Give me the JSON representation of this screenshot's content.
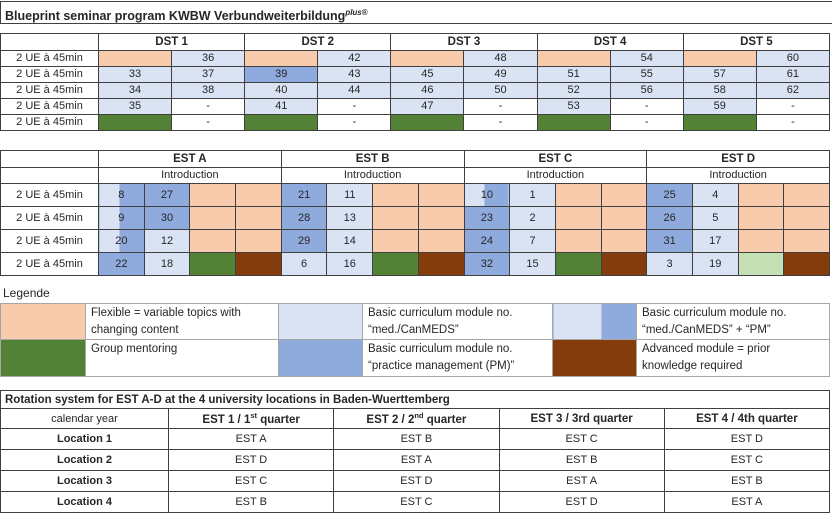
{
  "title": {
    "main": "Blueprint seminar program KWBW Verbundweiterbildung",
    "sup": "plus",
    "reg": "®"
  },
  "ue_label": "2 UE à 45min",
  "colors": {
    "flexible_orange": "#F8CBAD",
    "med_canmeds_light_blue": "#DAE3F3",
    "practice_mgmt_blue": "#8FAADC",
    "group_mentoring_green": "#538135",
    "light_green": "#C5E0B4",
    "advanced_brown": "#843C0C",
    "grid_border": "#404040",
    "legend_border": "#A6A6A6"
  },
  "dst_table": {
    "groups": [
      "DST 1",
      "DST 2",
      "DST 3",
      "DST 4",
      "DST 5"
    ],
    "rows": [
      {
        "cells": [
          {
            "bg": "or",
            "v": ""
          },
          {
            "bg": "lb",
            "v": "36"
          },
          {
            "bg": "or",
            "v": ""
          },
          {
            "bg": "lb",
            "v": "42"
          },
          {
            "bg": "or",
            "v": ""
          },
          {
            "bg": "lb",
            "v": "48"
          },
          {
            "bg": "or",
            "v": ""
          },
          {
            "bg": "lb",
            "v": "54"
          },
          {
            "bg": "or",
            "v": ""
          },
          {
            "bg": "lb",
            "v": "60"
          }
        ]
      },
      {
        "cells": [
          {
            "bg": "lb",
            "v": "33"
          },
          {
            "bg": "lb",
            "v": "37"
          },
          {
            "bg": "mb",
            "v": "39"
          },
          {
            "bg": "lb",
            "v": "43"
          },
          {
            "bg": "lb",
            "v": "45"
          },
          {
            "bg": "lb",
            "v": "49"
          },
          {
            "bg": "lb",
            "v": "51"
          },
          {
            "bg": "lb",
            "v": "55"
          },
          {
            "bg": "lb",
            "v": "57"
          },
          {
            "bg": "lb",
            "v": "61"
          }
        ]
      },
      {
        "cells": [
          {
            "bg": "lb",
            "v": "34"
          },
          {
            "bg": "lb",
            "v": "38"
          },
          {
            "bg": "lb",
            "v": "40"
          },
          {
            "bg": "lb",
            "v": "44"
          },
          {
            "bg": "lb",
            "v": "46"
          },
          {
            "bg": "lb",
            "v": "50"
          },
          {
            "bg": "lb",
            "v": "52"
          },
          {
            "bg": "lb",
            "v": "56"
          },
          {
            "bg": "lb",
            "v": "58"
          },
          {
            "bg": "lb",
            "v": "62"
          }
        ]
      },
      {
        "cells": [
          {
            "bg": "lb",
            "v": "35"
          },
          {
            "bg": "wh",
            "v": "-"
          },
          {
            "bg": "lb",
            "v": "41"
          },
          {
            "bg": "wh",
            "v": "-"
          },
          {
            "bg": "lb",
            "v": "47"
          },
          {
            "bg": "wh",
            "v": "-"
          },
          {
            "bg": "lb",
            "v": "53"
          },
          {
            "bg": "wh",
            "v": "-"
          },
          {
            "bg": "lb",
            "v": "59"
          },
          {
            "bg": "wh",
            "v": "-"
          }
        ]
      },
      {
        "cells": [
          {
            "bg": "gr",
            "v": ""
          },
          {
            "bg": "wh",
            "v": "-"
          },
          {
            "bg": "gr",
            "v": ""
          },
          {
            "bg": "wh",
            "v": "-"
          },
          {
            "bg": "gr",
            "v": ""
          },
          {
            "bg": "wh",
            "v": "-"
          },
          {
            "bg": "gr",
            "v": ""
          },
          {
            "bg": "wh",
            "v": "-"
          },
          {
            "bg": "gr",
            "v": ""
          },
          {
            "bg": "wh",
            "v": "-"
          }
        ]
      }
    ]
  },
  "est_table": {
    "groups": [
      "EST A",
      "EST B",
      "EST C",
      "EST D"
    ],
    "intro_label": "Introduction",
    "rows": [
      {
        "cells": [
          {
            "bg": "sp",
            "v": "8"
          },
          {
            "bg": "mb",
            "v": "27"
          },
          {
            "bg": "or",
            "v": ""
          },
          {
            "bg": "or",
            "v": ""
          },
          {
            "bg": "mb",
            "v": "21"
          },
          {
            "bg": "lb",
            "v": "11"
          },
          {
            "bg": "or",
            "v": ""
          },
          {
            "bg": "or",
            "v": ""
          },
          {
            "bg": "sp",
            "v": "10"
          },
          {
            "bg": "lb",
            "v": "1"
          },
          {
            "bg": "or",
            "v": ""
          },
          {
            "bg": "or",
            "v": ""
          },
          {
            "bg": "mb",
            "v": "25"
          },
          {
            "bg": "lb",
            "v": "4"
          },
          {
            "bg": "or",
            "v": ""
          },
          {
            "bg": "or",
            "v": ""
          }
        ]
      },
      {
        "cells": [
          {
            "bg": "sp",
            "v": "9"
          },
          {
            "bg": "mb",
            "v": "30"
          },
          {
            "bg": "or",
            "v": ""
          },
          {
            "bg": "or",
            "v": ""
          },
          {
            "bg": "mb",
            "v": "28"
          },
          {
            "bg": "lb",
            "v": "13"
          },
          {
            "bg": "or",
            "v": ""
          },
          {
            "bg": "or",
            "v": ""
          },
          {
            "bg": "mb",
            "v": "23"
          },
          {
            "bg": "lb",
            "v": "2"
          },
          {
            "bg": "or",
            "v": ""
          },
          {
            "bg": "or",
            "v": ""
          },
          {
            "bg": "mb",
            "v": "26"
          },
          {
            "bg": "lb",
            "v": "5"
          },
          {
            "bg": "or",
            "v": ""
          },
          {
            "bg": "or",
            "v": ""
          }
        ]
      },
      {
        "cells": [
          {
            "bg": "sp",
            "v": "20"
          },
          {
            "bg": "lb",
            "v": "12"
          },
          {
            "bg": "or",
            "v": ""
          },
          {
            "bg": "or",
            "v": ""
          },
          {
            "bg": "mb",
            "v": "29"
          },
          {
            "bg": "lb",
            "v": "14"
          },
          {
            "bg": "or",
            "v": ""
          },
          {
            "bg": "or",
            "v": ""
          },
          {
            "bg": "mb",
            "v": "24"
          },
          {
            "bg": "lb",
            "v": "7"
          },
          {
            "bg": "or",
            "v": ""
          },
          {
            "bg": "or",
            "v": ""
          },
          {
            "bg": "mb",
            "v": "31"
          },
          {
            "bg": "lb",
            "v": "17"
          },
          {
            "bg": "or",
            "v": ""
          },
          {
            "bg": "or",
            "v": ""
          }
        ]
      },
      {
        "cells": [
          {
            "bg": "mb",
            "v": "22"
          },
          {
            "bg": "lb",
            "v": "18"
          },
          {
            "bg": "gr",
            "v": ""
          },
          {
            "bg": "br",
            "v": ""
          },
          {
            "bg": "lb",
            "v": "6"
          },
          {
            "bg": "lb",
            "v": "16"
          },
          {
            "bg": "gr",
            "v": ""
          },
          {
            "bg": "br",
            "v": ""
          },
          {
            "bg": "mb",
            "v": "32"
          },
          {
            "bg": "lb",
            "v": "15"
          },
          {
            "bg": "gr",
            "v": ""
          },
          {
            "bg": "br",
            "v": ""
          },
          {
            "bg": "lb",
            "v": "3"
          },
          {
            "bg": "lb",
            "v": "19"
          },
          {
            "bg": "lg",
            "v": ""
          },
          {
            "bg": "br",
            "v": ""
          }
        ]
      }
    ]
  },
  "legend": {
    "heading": "Legende",
    "rows": [
      [
        {
          "sw": "or",
          "text": "Flexible = variable topics with changing content"
        },
        {
          "sw": "lb",
          "text": "Basic curriculum module no. “med./CanMEDS”"
        },
        {
          "sw": "sp",
          "text": "Basic curriculum module no. “med./CanMEDS” + “PM”"
        }
      ],
      [
        {
          "sw": "gr",
          "text": "Group mentoring"
        },
        {
          "sw": "mb",
          "text": "Basic curriculum module no. “practice management (PM)”"
        },
        {
          "sw": "br",
          "text": "Advanced module = prior knowledge required"
        }
      ]
    ]
  },
  "rotation": {
    "title": "Rotation system for EST A-D at the 4 university locations in Baden-Wuerttemberg",
    "headers": [
      {
        "pre": "calendar year",
        "sup": "",
        "post": "",
        "bold": false
      },
      {
        "pre": "EST 1 / 1",
        "sup": "st",
        "post": " quarter",
        "bold": true
      },
      {
        "pre": "EST 2 / 2",
        "sup": "nd",
        "post": " quarter",
        "bold": true
      },
      {
        "pre": "EST 3 / 3rd quarter",
        "sup": "",
        "post": "",
        "bold": true
      },
      {
        "pre": "EST 4 / 4th quarter",
        "sup": "",
        "post": "",
        "bold": true
      }
    ],
    "rows": [
      {
        "label": "Location 1",
        "values": [
          "EST A",
          "EST B",
          "EST C",
          "EST D"
        ]
      },
      {
        "label": "Location 2",
        "values": [
          "EST D",
          "EST A",
          "EST B",
          "EST C"
        ]
      },
      {
        "label": "Location 3",
        "values": [
          "EST C",
          "EST D",
          "EST A",
          "EST B"
        ]
      },
      {
        "label": "Location 4",
        "values": [
          "EST B",
          "EST C",
          "EST D",
          "EST A"
        ]
      }
    ]
  }
}
